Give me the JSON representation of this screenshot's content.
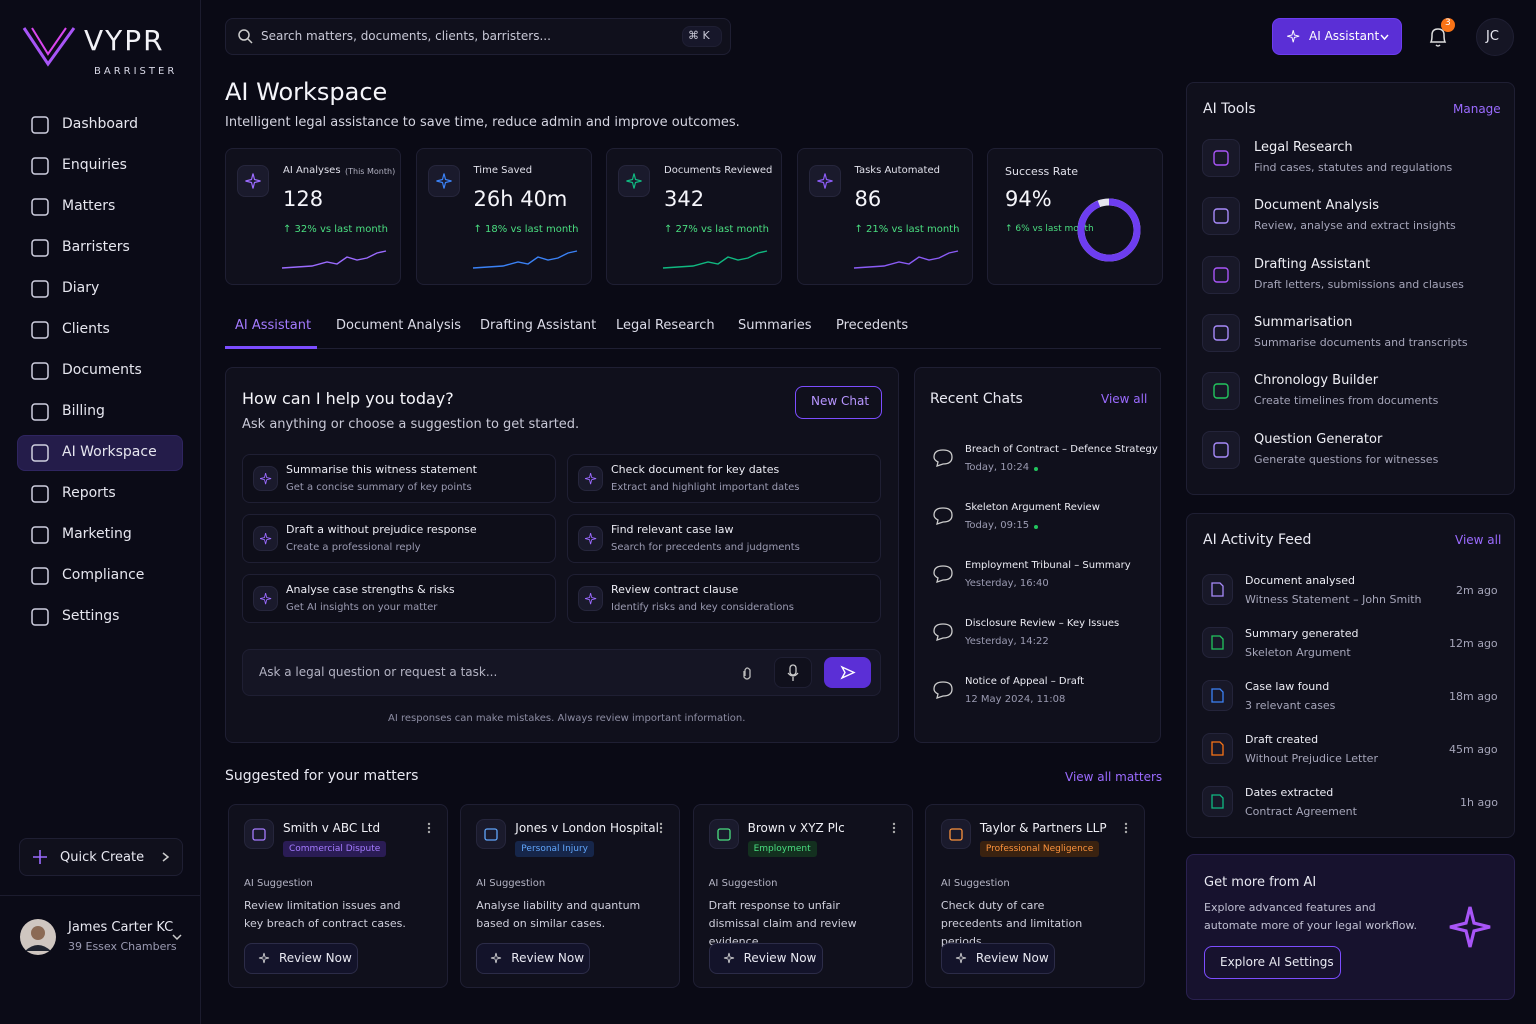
{
  "brand": {
    "name": "VYPR",
    "sub": "BARRISTER"
  },
  "nav": [
    "Dashboard",
    "Enquiries",
    "Matters",
    "Barristers",
    "Diary",
    "Clients",
    "Documents",
    "Billing",
    "AI Workspace",
    "Reports",
    "Marketing",
    "Compliance",
    "Settings"
  ],
  "quick_create": "Quick Create",
  "user": {
    "name": "James Carter KC",
    "org": "39 Essex Chambers"
  },
  "search": {
    "placeholder": "Search matters, documents, clients, barristers...",
    "shortcut": "⌘  K"
  },
  "topbar": {
    "assistant": "AI Assistant",
    "notifications": "3",
    "initials": "JC"
  },
  "header": {
    "title": "AI Workspace",
    "subtitle": "Intelligent legal assistance to save time, reduce admin and improve outcomes."
  },
  "stats": [
    {
      "label": "AI Analyses",
      "note": "(This Month)",
      "value": "128",
      "change": "↑ 32% vs last month"
    },
    {
      "label": "Time Saved",
      "value": "26h 40m",
      "change": "↑ 18% vs last month"
    },
    {
      "label": "Documents Reviewed",
      "value": "342",
      "change": "↑ 27% vs last month"
    },
    {
      "label": "Tasks Automated",
      "value": "86",
      "change": "↑ 21% vs last month"
    },
    {
      "label": "Success Rate",
      "rate": {
        "value": 94,
        "label": "94%"
      },
      "change": "↑ 6% vs last month"
    }
  ],
  "tabs": [
    "AI Assistant",
    "Document Analysis",
    "Drafting Assistant",
    "Legal Research",
    "Summaries",
    "Precedents"
  ],
  "help": {
    "title": "How can I help you today?",
    "subtitle": "Ask anything or choose a suggestion to get started.",
    "new_chat": "New Chat",
    "suggestions": [
      {
        "title": "Summarise this witness statement",
        "desc": "Get a concise summary of key points"
      },
      {
        "title": "Check document for key dates",
        "desc": "Extract and highlight important dates"
      },
      {
        "title": "Draft a without prejudice response",
        "desc": "Create a professional reply"
      },
      {
        "title": "Find relevant case law",
        "desc": "Search for precedents and judgments"
      },
      {
        "title": "Analyse case strengths & risks",
        "desc": "Get AI insights on your matter"
      },
      {
        "title": "Review contract clause",
        "desc": "Identify risks and key considerations"
      }
    ],
    "input": "Ask a legal question or request a task...",
    "disclaimer": "AI responses can make mistakes. Always review important information."
  },
  "recent_chats": {
    "title": "Recent Chats",
    "view_all": "View all",
    "items": [
      {
        "title": "Breach of Contract – Defence Strategy",
        "time": "Today, 10:24"
      },
      {
        "title": "Skeleton Argument Review",
        "time": "Today, 09:15"
      },
      {
        "title": "Employment Tribunal – Summary",
        "time": "Yesterday, 16:40"
      },
      {
        "title": "Disclosure Review – Key Issues",
        "time": "Yesterday, 14:22"
      },
      {
        "title": "Notice of Appeal – Draft",
        "time": "12 May 2024, 11:08"
      }
    ]
  },
  "suggested": {
    "title": "Suggested for your matters",
    "view_all": "View all matters",
    "matters": [
      {
        "name": "Smith v ABC Ltd",
        "tag": "Commercial Dispute",
        "label": "AI Suggestion",
        "text": "Review limitation issues and key breach of contract cases.",
        "action": "Review Now"
      },
      {
        "name": "Jones v London Hospital",
        "tag": "Personal Injury",
        "label": "AI Suggestion",
        "text": "Analyse liability and quantum based on similar cases.",
        "action": "Review Now"
      },
      {
        "name": "Brown v XYZ Plc",
        "tag": "Employment",
        "label": "AI Suggestion",
        "text": "Draft response to unfair dismissal claim and review evidence.",
        "action": "Review Now"
      },
      {
        "name": "Taylor & Partners LLP",
        "tag": "Professional Negligence",
        "label": "AI Suggestion",
        "text": "Check duty of care precedents and limitation periods.",
        "action": "Review Now"
      }
    ]
  },
  "ai_tools": {
    "title": "AI Tools",
    "manage": "Manage",
    "items": [
      {
        "name": "Legal Research",
        "desc": "Find cases, statutes and regulations"
      },
      {
        "name": "Document Analysis",
        "desc": "Review, analyse and extract insights"
      },
      {
        "name": "Drafting Assistant",
        "desc": "Draft letters, submissions and clauses"
      },
      {
        "name": "Summarisation",
        "desc": "Summarise documents and transcripts"
      },
      {
        "name": "Chronology Builder",
        "desc": "Create timelines from documents"
      },
      {
        "name": "Question Generator",
        "desc": "Generate questions for witnesses"
      }
    ]
  },
  "activity": {
    "title": "AI Activity Feed",
    "view_all": "View all",
    "items": [
      {
        "title": "Document analysed",
        "sub": "Witness Statement – John Smith",
        "time": "2m ago"
      },
      {
        "title": "Summary generated",
        "sub": "Skeleton Argument",
        "time": "12m ago"
      },
      {
        "title": "Case law found",
        "sub": "3 relevant cases",
        "time": "18m ago"
      },
      {
        "title": "Draft created",
        "sub": "Without Prejudice Letter",
        "time": "45m ago"
      },
      {
        "title": "Dates extracted",
        "sub": "Contract Agreement",
        "time": "1h ago"
      }
    ]
  },
  "promo": {
    "title": "Get more from AI",
    "text": "Explore advanced features and automate more of your legal workflow.",
    "button": "Explore AI Settings"
  }
}
